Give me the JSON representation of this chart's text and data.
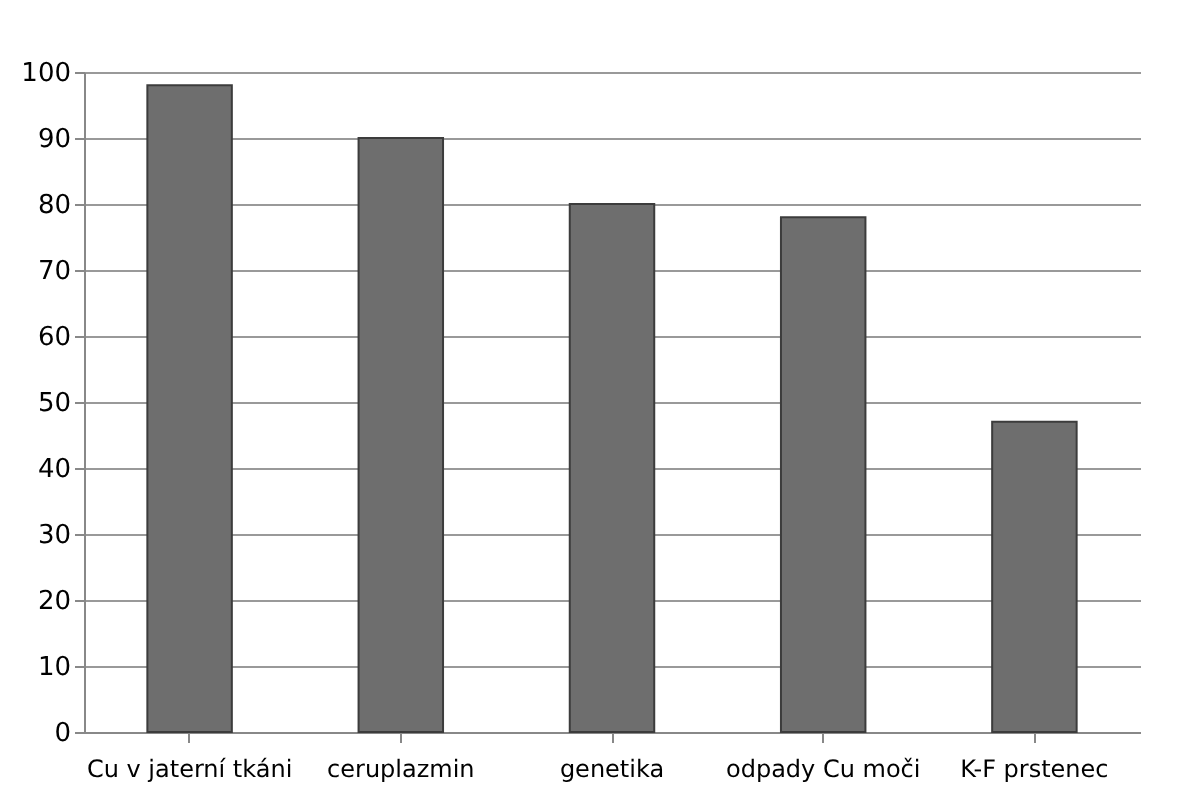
{
  "chart_data": {
    "type": "bar",
    "categories": [
      "Cu v jaterní tkáni",
      "ceruplazmin",
      "genetika",
      "odpady Cu moči",
      "K-F prstenec"
    ],
    "values": [
      98,
      90,
      80,
      78,
      47
    ],
    "color": "#6e6e6e",
    "ylim": [
      0,
      100
    ],
    "yticks": [
      0,
      10,
      20,
      30,
      40,
      50,
      60,
      70,
      80,
      90,
      100
    ],
    "grid": "y"
  }
}
